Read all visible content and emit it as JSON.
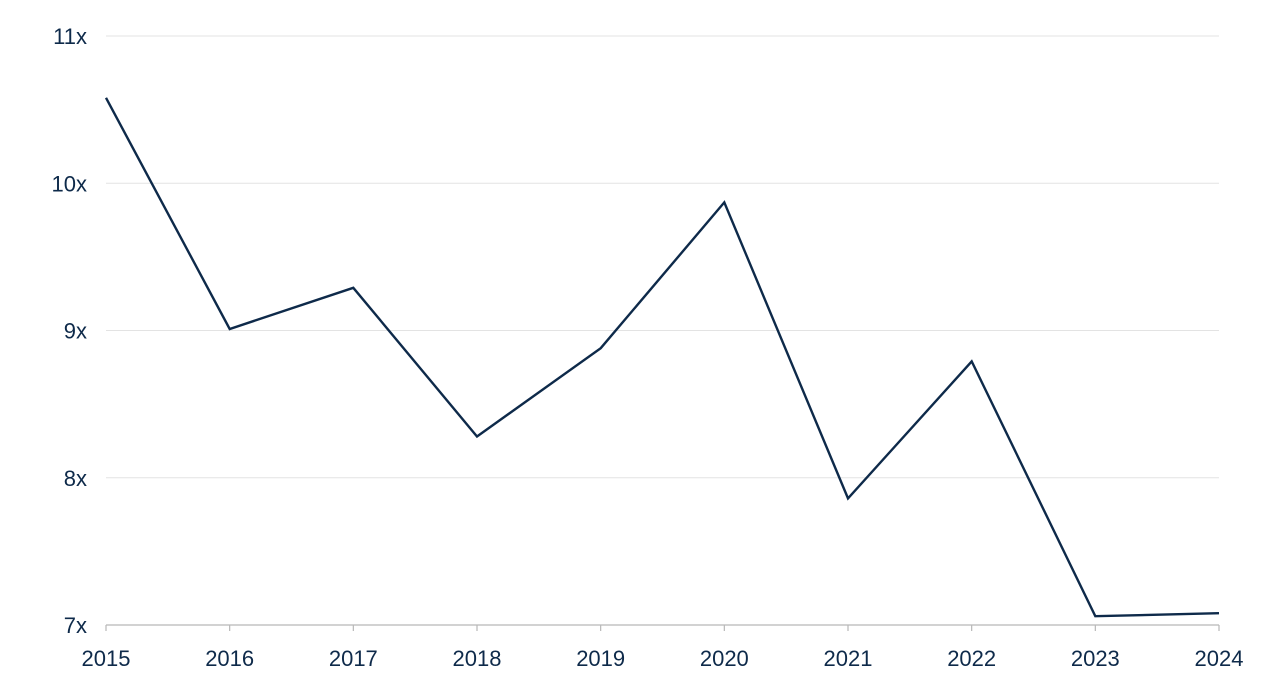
{
  "chart_data": {
    "type": "line",
    "title": "",
    "xlabel": "",
    "ylabel": "",
    "x": [
      "2015",
      "2016",
      "2017",
      "2018",
      "2019",
      "2020",
      "2021",
      "2022",
      "2023",
      "2024"
    ],
    "series": [
      {
        "values": [
          10.58,
          9.01,
          9.29,
          8.28,
          8.88,
          9.87,
          7.86,
          8.79,
          7.06,
          7.08
        ],
        "color": "#0e2a4a"
      }
    ],
    "ylim": [
      7,
      11
    ],
    "yticks": [
      7,
      8,
      9,
      10,
      11
    ],
    "ytick_labels": [
      "7x",
      "8x",
      "9x",
      "10x",
      "11x"
    ],
    "grid": true,
    "legend": "none"
  }
}
